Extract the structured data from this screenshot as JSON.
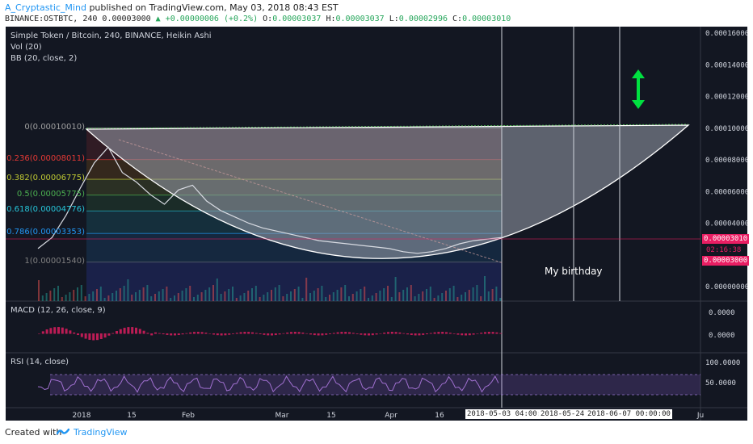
{
  "header": {
    "author": "A_Cryptastic_Mind",
    "published_text": "published on TradingView.com, May 03, 2018 08:43 EST",
    "symbol": "BINANCE:OSTBTC, 240",
    "price": "0.00003000",
    "change": "▲ +0.00000006 (+0.2%)",
    "o_label": "O:",
    "o_value": "0.00003037",
    "h_label": "H:",
    "h_value": "0.00003037",
    "l_label": "L:",
    "l_value": "0.00002996",
    "c_label": "C:",
    "c_value": "0.00003010"
  },
  "legends": {
    "main": "Simple Token / Bitcoin, 240, BINANCE, Heikin Ashi",
    "vol": "Vol (20)",
    "bb": "BB (20, close, 2)",
    "macd": "MACD (12, 26, close, 9)",
    "rsi": "RSI (14, close)"
  },
  "annotation": "My birthday",
  "footer": {
    "created_with": "Created with",
    "brand": "TradingView"
  },
  "colors": {
    "background": "#131722",
    "fib_red": "#e53935",
    "fib_orange": "#ff9800",
    "fib_yellow": "#c0ca33",
    "fib_green": "#4caf50",
    "fib_teal": "#26c6da",
    "fib_blue": "#2196f3",
    "arrow_green": "#00e040",
    "price_tag": "#e91e63"
  },
  "chart_data": [
    {
      "type": "line",
      "panel": "price",
      "y_scale": "linear",
      "ylim": [
        0,
        0.00016
      ],
      "y_ticks": [
        "0.00016000",
        "0.00014000",
        "0.00012000",
        "0.00010000",
        "0.00008000",
        "0.00006000",
        "0.00004000",
        "0.00000000"
      ],
      "x_ticks": [
        "2018",
        "15",
        "Feb",
        "Mar",
        "15",
        "Apr",
        "16",
        "Ju"
      ],
      "x_date_labels": [
        "2018-05-03 04:00:00",
        "2018-05-24 1(",
        "2018-06-07 00:00:00"
      ],
      "price_labels": [
        {
          "label": "0.00003010",
          "kind": "last"
        },
        {
          "label": "02:16:38",
          "kind": "countdown"
        },
        {
          "label": "0.00003000",
          "kind": "close"
        }
      ],
      "fib_levels": [
        {
          "ratio": "0",
          "price": "0.00010010",
          "value": 0.0001001,
          "label": "0(0.00010010)",
          "color": "#a0a0a0"
        },
        {
          "ratio": "0.236",
          "price": "0.00008011",
          "value": 8.011e-05,
          "label": "0.236(0.00008011)",
          "color": "#e53935"
        },
        {
          "ratio": "0.382",
          "price": "0.00006775",
          "value": 6.775e-05,
          "label": "0.382(0.00006775)",
          "color": "#c0ca33"
        },
        {
          "ratio": "0.5",
          "price": "0.00005775",
          "value": 5.775e-05,
          "label": "0.5(0.00005775)",
          "color": "#4caf50"
        },
        {
          "ratio": "0.618",
          "price": "0.00004776",
          "value": 4.776e-05,
          "label": "0.618(0.00004776)",
          "color": "#26c6da"
        },
        {
          "ratio": "0.786",
          "price": "0.00003353",
          "value": 3.353e-05,
          "label": "0.786(0.00003353)",
          "color": "#2196f3"
        },
        {
          "ratio": "1",
          "price": "0.00001540",
          "value": 1.54e-05,
          "label": "1(0.00001540)",
          "color": "#808080"
        }
      ],
      "price_series": [
        2.4e-05,
        3.1e-05,
        4.5e-05,
        6.2e-05,
        7.8e-05,
        8.8e-05,
        7.2e-05,
        6.6e-05,
        5.8e-05,
        5.2e-05,
        6.1e-05,
        6.4e-05,
        5.4e-05,
        4.8e-05,
        4.4e-05,
        4e-05,
        3.7e-05,
        3.5e-05,
        3.3e-05,
        3.1e-05,
        2.9e-05,
        2.8e-05,
        2.7e-05,
        2.6e-05,
        2.5e-05,
        2.4e-05,
        2.2e-05,
        2.1e-05,
        2.2e-05,
        2.4e-05,
        2.7e-05,
        2.9e-05,
        3e-05,
        3.1e-05
      ]
    },
    {
      "type": "line",
      "panel": "macd",
      "y_ticks": [
        "0.0000",
        "0.0000"
      ]
    },
    {
      "type": "line",
      "panel": "rsi",
      "y_ticks": [
        "100.0000",
        "50.0000"
      ]
    }
  ]
}
